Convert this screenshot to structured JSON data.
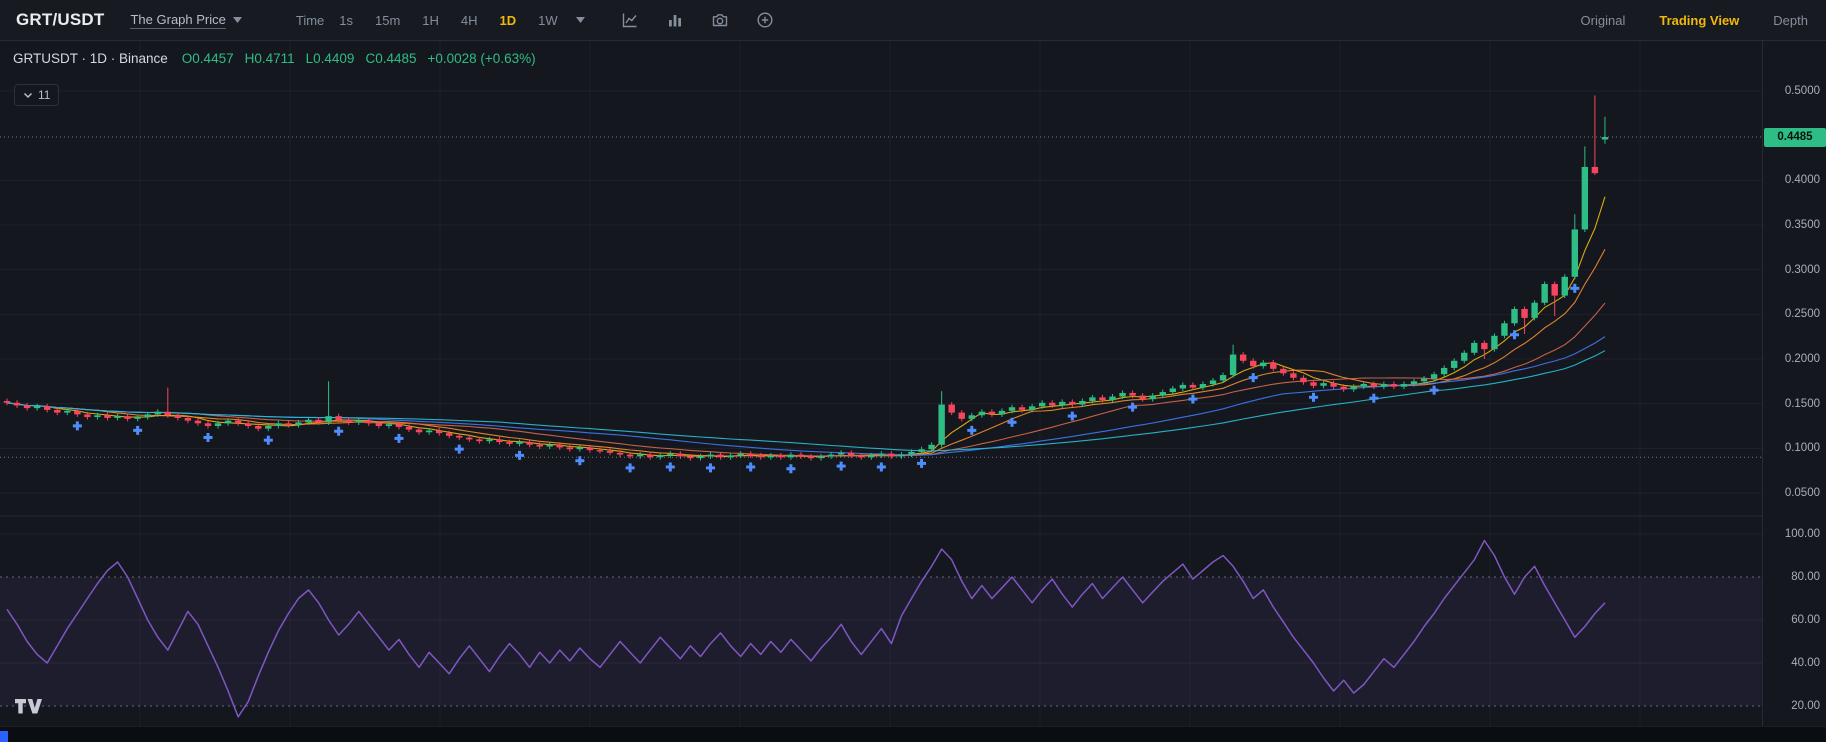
{
  "toolbar": {
    "symbol": "GRT/USDT",
    "subtitle": "The Graph Price",
    "time_label": "Time",
    "intervals": [
      "1s",
      "15m",
      "1H",
      "4H",
      "1D",
      "1W"
    ],
    "active_interval": "1D",
    "right_tabs": [
      "Original",
      "Trading View",
      "Depth"
    ],
    "active_right_tab": "Trading View"
  },
  "legend": {
    "series": "GRTUSDT · 1D · Binance",
    "ohlc_parts": [
      "O0.4457",
      "H0.4711",
      "L0.4409",
      "C0.4485",
      "+0.0028 (+0.63%)"
    ]
  },
  "indicator_chip": {
    "count": "11"
  },
  "colors": {
    "accent_yellow": "#f0b90b",
    "up_green": "#2ebd85",
    "down_red": "#f6465d",
    "rsi_purple": "#7e57c2",
    "marker_blue": "#4f8dfd",
    "axis_text": "#a8aeba",
    "legend_green": "#2ebd85"
  },
  "chart_data": {
    "type": "candlestick",
    "symbol": "GRTUSDT",
    "interval": "1D",
    "exchange": "Binance",
    "main": {
      "first_open": 0.153,
      "closes": [
        0.151,
        0.148,
        0.145,
        0.147,
        0.143,
        0.14,
        0.142,
        0.138,
        0.135,
        0.137,
        0.134,
        0.136,
        0.133,
        0.135,
        0.138,
        0.141,
        0.137,
        0.134,
        0.131,
        0.128,
        0.125,
        0.128,
        0.131,
        0.128,
        0.125,
        0.122,
        0.125,
        0.128,
        0.126,
        0.129,
        0.132,
        0.129,
        0.136,
        0.132,
        0.129,
        0.131,
        0.128,
        0.125,
        0.127,
        0.124,
        0.121,
        0.118,
        0.12,
        0.117,
        0.114,
        0.112,
        0.11,
        0.108,
        0.11,
        0.107,
        0.105,
        0.107,
        0.104,
        0.102,
        0.104,
        0.101,
        0.099,
        0.101,
        0.098,
        0.097,
        0.095,
        0.093,
        0.091,
        0.093,
        0.09,
        0.092,
        0.094,
        0.091,
        0.089,
        0.091,
        0.093,
        0.09,
        0.092,
        0.094,
        0.092,
        0.09,
        0.092,
        0.09,
        0.093,
        0.091,
        0.089,
        0.091,
        0.093,
        0.095,
        0.092,
        0.09,
        0.092,
        0.094,
        0.091,
        0.093,
        0.096,
        0.099,
        0.104,
        0.149,
        0.14,
        0.133,
        0.137,
        0.141,
        0.138,
        0.142,
        0.146,
        0.143,
        0.147,
        0.151,
        0.148,
        0.152,
        0.149,
        0.153,
        0.157,
        0.154,
        0.158,
        0.162,
        0.159,
        0.155,
        0.159,
        0.163,
        0.167,
        0.171,
        0.168,
        0.172,
        0.176,
        0.182,
        0.205,
        0.198,
        0.192,
        0.196,
        0.189,
        0.184,
        0.179,
        0.174,
        0.17,
        0.173,
        0.169,
        0.166,
        0.169,
        0.172,
        0.169,
        0.172,
        0.169,
        0.172,
        0.175,
        0.178,
        0.183,
        0.19,
        0.198,
        0.207,
        0.218,
        0.211,
        0.226,
        0.24,
        0.256,
        0.246,
        0.263,
        0.284,
        0.271,
        0.292,
        0.345,
        0.415,
        0.408,
        0.4485
      ],
      "wick": 0.0028,
      "spikes": {
        "16": {
          "h": 0.168
        },
        "32": {
          "h": 0.175
        },
        "93": {
          "h": 0.164,
          "l": 0.101
        },
        "122": {
          "h": 0.216
        },
        "147": {
          "l": 0.2
        },
        "151": {
          "l": 0.228
        },
        "154": {
          "l": 0.248
        },
        "156": {
          "h": 0.362
        },
        "157": {
          "h": 0.438
        },
        "158": {
          "h": 0.495,
          "l": 0.406
        },
        "159": {
          "h": 0.4711,
          "l": 0.4409
        }
      },
      "opens_override": {
        "159": 0.4457
      },
      "up_color": "#2ebd85",
      "down_color": "#f6465d",
      "last_price": 0.4485,
      "last_price_label": "0.4485",
      "dotted_levels": [
        0.4485,
        0.09
      ],
      "ma_lines": [
        {
          "period": 5,
          "color": "#f0b90b"
        },
        {
          "period": 10,
          "color": "#f78e2a"
        },
        {
          "period": 20,
          "color": "#d8694e"
        },
        {
          "period": 35,
          "color": "#3e7bfa"
        },
        {
          "period": 50,
          "color": "#2ac0d8"
        }
      ],
      "trade_marker_indices": [
        7,
        13,
        20,
        26,
        33,
        39,
        45,
        51,
        57,
        62,
        66,
        70,
        74,
        78,
        83,
        87,
        91,
        96,
        100,
        106,
        112,
        118,
        124,
        130,
        136,
        142,
        150,
        156
      ],
      "marker_color": "#4f8dfd",
      "y_axis": [
        {
          "text": "0.5000",
          "value": 0.5
        },
        {
          "text": "0.4000",
          "value": 0.4
        },
        {
          "text": "0.3500",
          "value": 0.35
        },
        {
          "text": "0.3000",
          "value": 0.3
        },
        {
          "text": "0.2500",
          "value": 0.25
        },
        {
          "text": "0.2000",
          "value": 0.2
        },
        {
          "text": "0.1500",
          "value": 0.15
        },
        {
          "text": "0.1000",
          "value": 0.1
        },
        {
          "text": "0.0500",
          "value": 0.05
        }
      ]
    },
    "rsi": {
      "values": [
        65,
        58,
        50,
        44,
        40,
        48,
        56,
        63,
        70,
        77,
        83,
        87,
        80,
        70,
        60,
        52,
        46,
        55,
        64,
        58,
        48,
        38,
        27,
        15,
        22,
        34,
        45,
        55,
        63,
        70,
        74,
        68,
        60,
        53,
        58,
        64,
        58,
        52,
        46,
        51,
        44,
        38,
        45,
        40,
        35,
        42,
        48,
        42,
        36,
        43,
        49,
        44,
        38,
        45,
        40,
        46,
        41,
        47,
        42,
        38,
        44,
        50,
        45,
        40,
        46,
        52,
        47,
        42,
        48,
        43,
        49,
        54,
        48,
        43,
        49,
        44,
        50,
        45,
        51,
        46,
        41,
        47,
        52,
        58,
        50,
        44,
        50,
        56,
        49,
        62,
        70,
        78,
        85,
        93,
        88,
        78,
        70,
        76,
        70,
        75,
        80,
        74,
        68,
        74,
        79,
        72,
        66,
        72,
        77,
        70,
        75,
        80,
        74,
        68,
        73,
        78,
        82,
        86,
        79,
        83,
        87,
        90,
        85,
        78,
        70,
        74,
        66,
        59,
        52,
        46,
        40,
        33,
        27,
        32,
        26,
        30,
        36,
        42,
        38,
        44,
        50,
        57,
        63,
        70,
        76,
        82,
        88,
        97,
        90,
        80,
        72,
        80,
        85,
        76,
        68,
        60,
        52,
        57,
        63,
        68
      ],
      "color": "#7e57c2",
      "band": [
        20,
        80
      ],
      "dashed_levels": [
        80,
        20
      ],
      "y_axis": [
        {
          "text": "100.00",
          "value": 100
        },
        {
          "text": "80.00",
          "value": 80
        },
        {
          "text": "60.00",
          "value": 60
        },
        {
          "text": "40.00",
          "value": 40
        },
        {
          "text": "20.00",
          "value": 20
        }
      ]
    }
  }
}
